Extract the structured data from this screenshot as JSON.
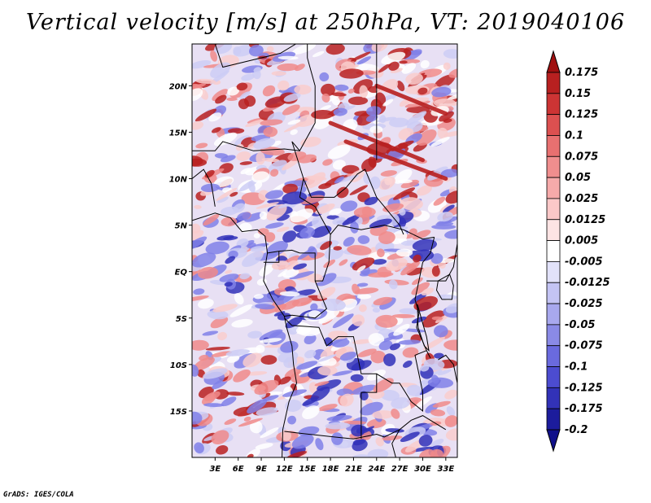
{
  "title": "Vertical velocity [m/s] at 250hPa, VT: 2019040106",
  "credit": "GrADS: IGES/COLA",
  "map": {
    "lat_range": [
      -20,
      24.5
    ],
    "lon_range": [
      0,
      34.5
    ],
    "lat_ticks": [
      "20N",
      "15N",
      "10N",
      "5N",
      "EQ",
      "5S",
      "10S",
      "15S"
    ],
    "lon_ticks": [
      "3E",
      "6E",
      "9E",
      "12E",
      "15E",
      "18E",
      "21E",
      "24E",
      "27E",
      "30E",
      "33E"
    ],
    "field_colors": {
      "strong_up": "#b82020",
      "up": "#f08a8a",
      "weak_up": "#f9cccc",
      "neutral": "#ffffff",
      "weak_down": "#ccccf5",
      "down": "#8080e8",
      "strong_down": "#3030b8"
    }
  },
  "colorbar": {
    "labels": [
      "0.175",
      "0.15",
      "0.125",
      "0.1",
      "0.075",
      "0.05",
      "0.025",
      "0.0125",
      "0.005",
      "-0.005",
      "-0.0125",
      "-0.025",
      "-0.05",
      "-0.075",
      "-0.1",
      "-0.125",
      "-0.175",
      "-0.2"
    ],
    "colors": [
      "#a01010",
      "#b82020",
      "#cc3434",
      "#dc5050",
      "#e87070",
      "#f08e8e",
      "#f6aaaa",
      "#fbc8c8",
      "#fde4e4",
      "#ffffff",
      "#e2e2fa",
      "#c4c4f4",
      "#a8a8ee",
      "#8a8ae6",
      "#6a6ade",
      "#4c4cd0",
      "#3232b8",
      "#1c1c9c",
      "#10108a"
    ]
  }
}
